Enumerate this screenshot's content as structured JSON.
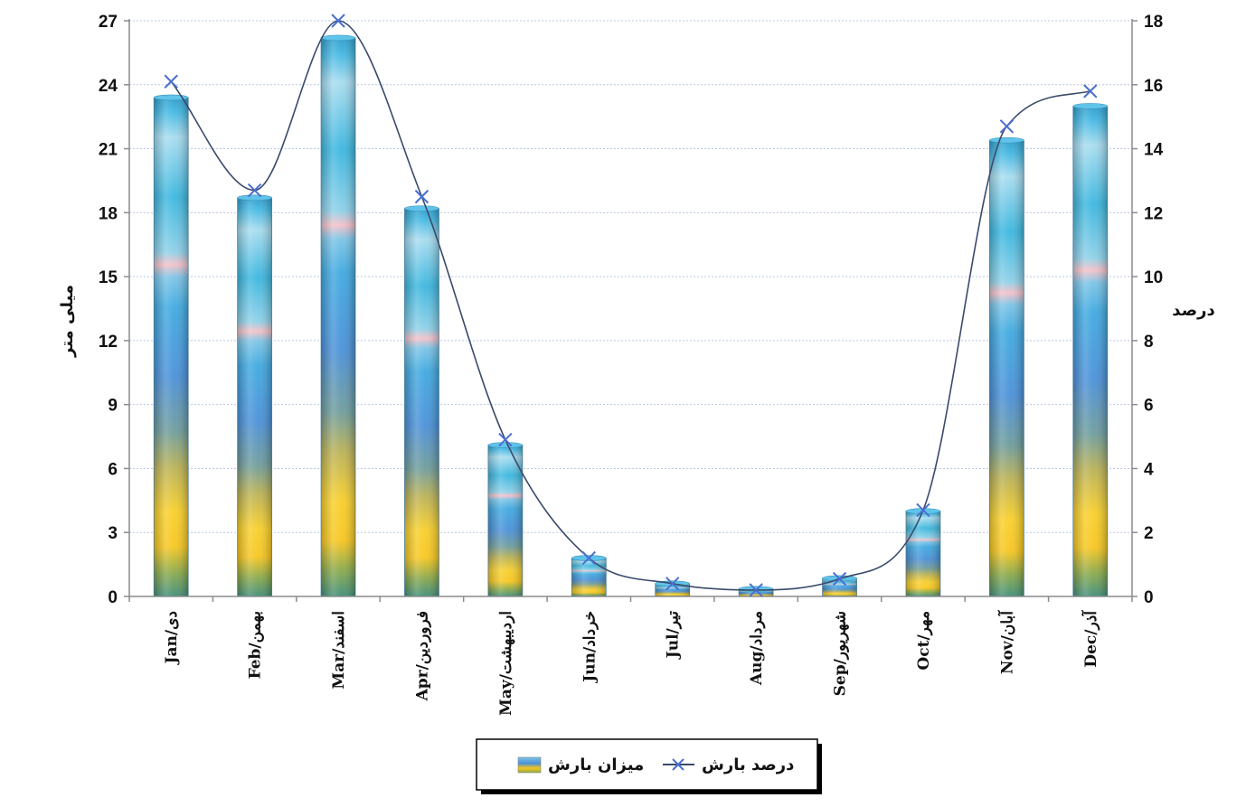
{
  "chart_data": {
    "type": "bar",
    "categories": [
      "Jan/دی",
      "Feb/بهمن",
      "Mar/اسفند",
      "Apr/فروردین",
      "May/اردیبهشت",
      "Jun/خرداد",
      "Jul/تیر",
      "Aug/مرداد",
      "Sep/شهریور",
      "Oct/مهر",
      "Nov/آبان",
      "Dec/آذر"
    ],
    "series": [
      {
        "name": "میزان بارش",
        "type": "bar",
        "axis": "left",
        "values": [
          23.4,
          18.7,
          26.2,
          18.2,
          7.1,
          1.8,
          0.6,
          0.35,
          0.85,
          4.0,
          21.4,
          23.0
        ]
      },
      {
        "name": "درصد بارش",
        "type": "line",
        "axis": "right",
        "values": [
          16.1,
          12.7,
          18.0,
          12.5,
          4.9,
          1.2,
          0.4,
          0.2,
          0.55,
          2.7,
          14.7,
          15.8
        ]
      }
    ],
    "ylabel": "میلی متر",
    "y2label": "درصد",
    "ylim": [
      0,
      27
    ],
    "y2lim": [
      0,
      18
    ],
    "yticks": [
      "0",
      "3",
      "6",
      "9",
      "12",
      "15",
      "18",
      "21",
      "24",
      "27"
    ],
    "y2ticks": [
      "0",
      "2",
      "4",
      "6",
      "8",
      "10",
      "12",
      "14",
      "16",
      "18"
    ],
    "grid": true,
    "legend_position": "bottom-center",
    "colors": {
      "line": "#3a4a6b",
      "marker": "#4a6fd0",
      "grid": "#b9c8e6",
      "axis": "#8c8c8c"
    }
  }
}
